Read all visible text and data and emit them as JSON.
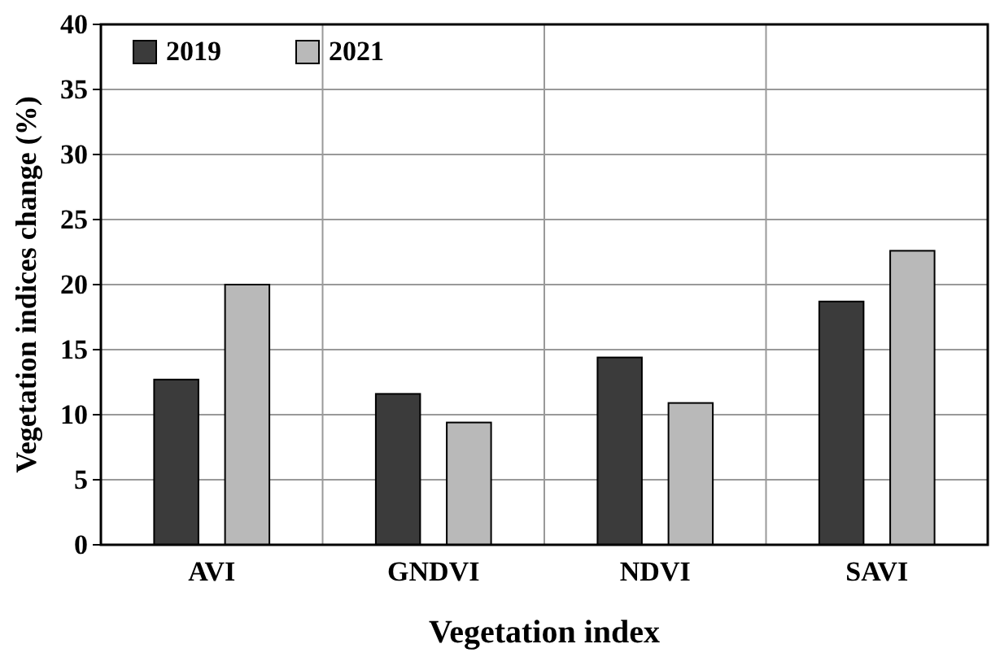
{
  "chart_data": {
    "type": "bar",
    "xlabel": "Vegetation index",
    "ylabel": "Vegetation indices change (%)",
    "categories": [
      "AVI",
      "GNDVI",
      "NDVI",
      "SAVI"
    ],
    "series": [
      {
        "name": "2019",
        "color": "#3b3b3b",
        "values": [
          12.7,
          11.6,
          14.4,
          18.7
        ]
      },
      {
        "name": "2021",
        "color": "#b9b9b9",
        "values": [
          20.0,
          9.4,
          10.9,
          22.6
        ]
      }
    ],
    "ylim": [
      0,
      40
    ],
    "yticks": [
      0,
      5,
      10,
      15,
      20,
      25,
      30,
      35,
      40
    ],
    "grid": true,
    "legend": "top left"
  }
}
